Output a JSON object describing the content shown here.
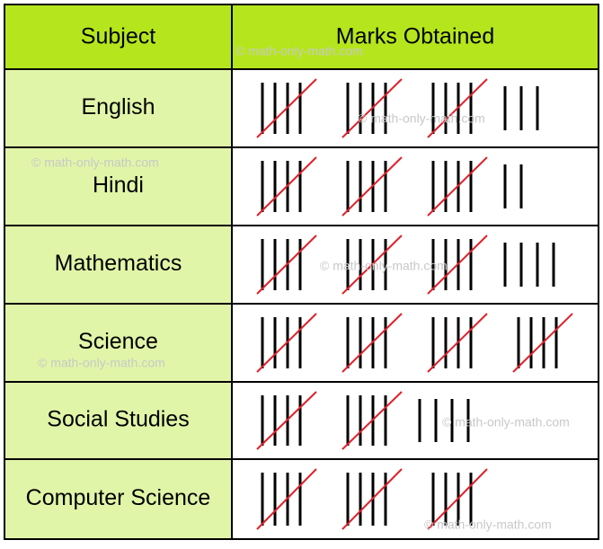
{
  "table": {
    "headers": [
      "Subject",
      "Marks Obtained"
    ],
    "rows": [
      {
        "subject": "English",
        "tally": 18
      },
      {
        "subject": "Hindi",
        "tally": 17
      },
      {
        "subject": "Mathematics",
        "tally": 19
      },
      {
        "subject": "Science",
        "tally": 20
      },
      {
        "subject": "Social Studies",
        "tally": 14
      },
      {
        "subject": "Computer Science",
        "tally": 15
      }
    ]
  },
  "watermark": "© math-only-math.com"
}
